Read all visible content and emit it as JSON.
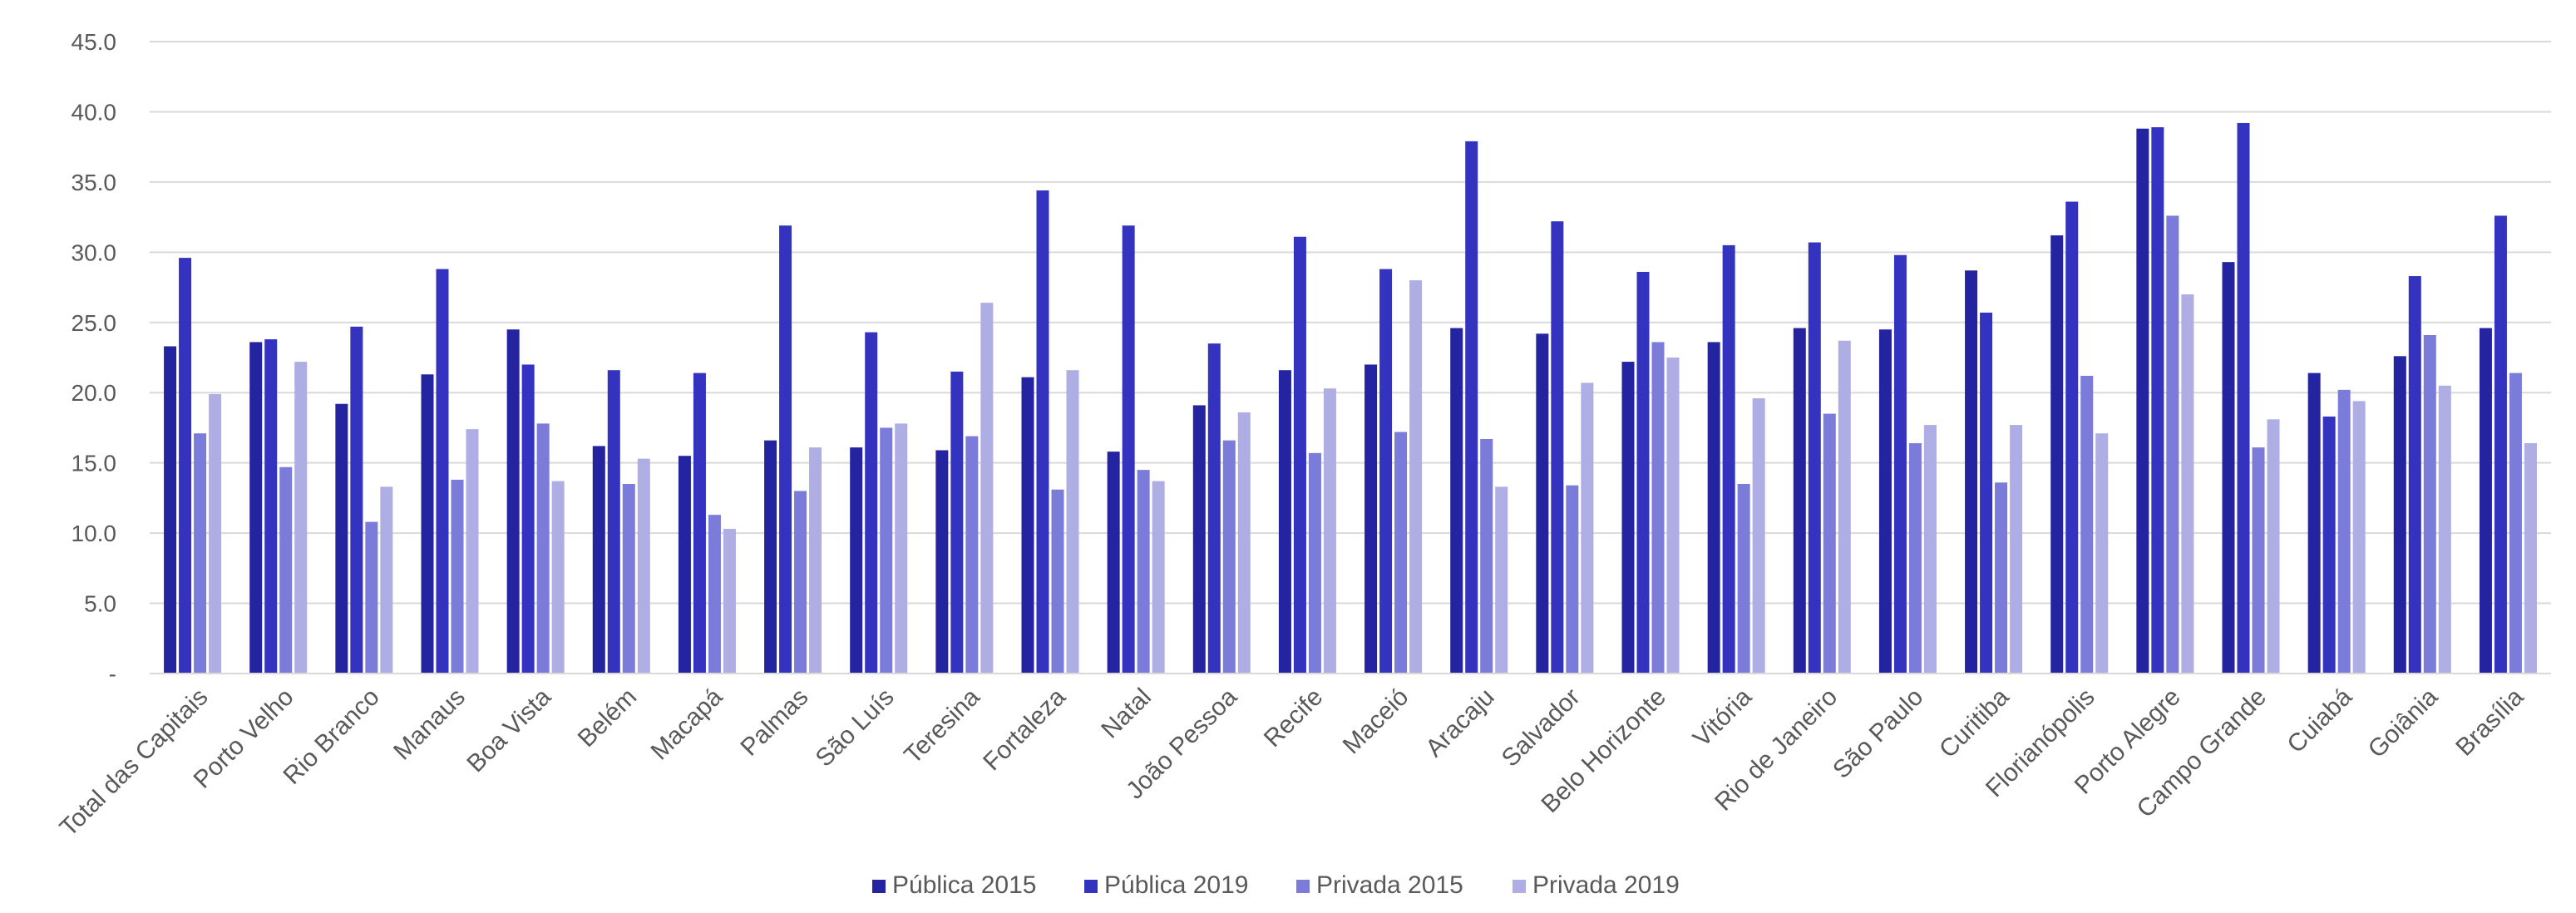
{
  "chart_data": {
    "type": "bar",
    "title": "",
    "xlabel": "",
    "ylabel": "",
    "ylim": [
      0,
      45
    ],
    "y_ticks": [
      0,
      5,
      10,
      15,
      20,
      25,
      30,
      35,
      40,
      45
    ],
    "y_tick_labels": [
      "-",
      "5.0",
      "10.0",
      "15.0",
      "20.0",
      "25.0",
      "30.0",
      "35.0",
      "40.0",
      "45.0"
    ],
    "grid": true,
    "legend_position": "bottom",
    "categories": [
      "Total das Capitais",
      "Porto Velho",
      "Rio Branco",
      "Manaus",
      "Boa Vista",
      "Belém",
      "Macapá",
      "Palmas",
      "São Luís",
      "Teresina",
      "Fortaleza",
      "Natal",
      "João Pessoa",
      "Recife",
      "Maceió",
      "Aracaju",
      "Salvador",
      "Belo Horizonte",
      "Vitória",
      "Rio de Janeiro",
      "São Paulo",
      "Curitiba",
      "Florianópolis",
      "Porto Alegre",
      "Campo Grande",
      "Cuiabá",
      "Goiânia",
      "Brasília"
    ],
    "series": [
      {
        "name": "Pública 2015",
        "color": "#2424a0",
        "values": [
          23.3,
          23.6,
          19.2,
          21.3,
          24.5,
          16.2,
          15.5,
          16.6,
          16.1,
          15.9,
          21.1,
          15.8,
          19.1,
          21.6,
          22.0,
          24.6,
          24.2,
          22.2,
          23.6,
          24.6,
          24.5,
          28.7,
          31.2,
          38.8,
          29.3,
          21.4,
          22.6,
          24.6
        ]
      },
      {
        "name": "Pública 2019",
        "color": "#3333c0",
        "values": [
          29.6,
          23.8,
          24.7,
          28.8,
          22.0,
          21.6,
          21.4,
          31.9,
          24.3,
          21.5,
          34.4,
          31.9,
          23.5,
          31.1,
          28.8,
          37.9,
          32.2,
          28.6,
          30.5,
          30.7,
          29.8,
          25.7,
          33.6,
          38.9,
          39.2,
          18.3,
          28.3,
          32.6
        ]
      },
      {
        "name": "Privada 2015",
        "color": "#7b7bd9",
        "values": [
          17.1,
          14.7,
          10.8,
          13.8,
          17.8,
          13.5,
          11.3,
          13.0,
          17.5,
          16.9,
          13.1,
          14.5,
          16.6,
          15.7,
          17.2,
          16.7,
          13.4,
          23.6,
          13.5,
          18.5,
          16.4,
          13.6,
          21.2,
          32.6,
          16.1,
          20.2,
          24.1,
          21.4
        ]
      },
      {
        "name": "Privada 2019",
        "color": "#aeaee5",
        "values": [
          19.9,
          22.2,
          13.3,
          17.4,
          13.7,
          15.3,
          10.3,
          16.1,
          17.8,
          26.4,
          21.6,
          13.7,
          18.6,
          20.3,
          28.0,
          13.3,
          20.7,
          22.5,
          19.6,
          23.7,
          17.7,
          17.7,
          17.1,
          27.0,
          18.1,
          19.4,
          20.5,
          16.4
        ]
      }
    ]
  }
}
